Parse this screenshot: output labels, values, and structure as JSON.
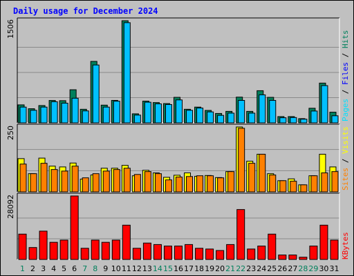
{
  "title": "Daily usage for December 2024",
  "colors": {
    "background": "#c0c0c0",
    "title": "#0000ff",
    "hits": "#00805c",
    "files": "#00c0ff",
    "pages": "#00e0ff",
    "visits": "#ffff00",
    "sites": "#ff8000",
    "kbytes": "#ff0000",
    "weekday_label": "#000000",
    "weekend_label": "#00805c"
  },
  "chart_data": [
    {
      "type": "bar",
      "name": "hits-files-pages",
      "max_label": "1506",
      "ylim": [
        0,
        1506
      ],
      "legend": [
        {
          "text": "Pages",
          "color": "#00e0ff"
        },
        {
          "text": " / ",
          "color": "#000000"
        },
        {
          "text": "Files",
          "color": "#0000ff"
        },
        {
          "text": " / ",
          "color": "#000000"
        },
        {
          "text": "Hits",
          "color": "#00805c"
        }
      ],
      "series": [
        {
          "name": "Hits",
          "color": "#00805c",
          "values": [
            265,
            208,
            255,
            330,
            327,
            488,
            200,
            906,
            261,
            331,
            1506,
            133,
            320,
            299,
            284,
            376,
            200,
            232,
            183,
            138,
            169,
            379,
            169,
            474,
            376,
            92,
            92,
            62,
            215,
            586,
            157
          ]
        },
        {
          "name": "Files",
          "color": "#00c0ff",
          "values": [
            232,
            185,
            232,
            311,
            290,
            363,
            176,
            853,
            232,
            319,
            1477,
            114,
            304,
            280,
            270,
            338,
            185,
            218,
            161,
            110,
            143,
            331,
            143,
            413,
            331,
            75,
            78,
            54,
            174,
            549,
            104
          ]
        }
      ]
    },
    {
      "type": "bar",
      "name": "visits-sites",
      "max_label": "250",
      "ylim": [
        0,
        250
      ],
      "legend": [
        {
          "text": "Sites",
          "color": "#ff8000"
        },
        {
          "text": " / ",
          "color": "#000000"
        },
        {
          "text": "Visits",
          "color": "#ffff00"
        }
      ],
      "series": [
        {
          "name": "Visits",
          "color": "#ffff00",
          "values": [
            128,
            70,
            130,
            99,
            96,
            111,
            49,
            65,
            91,
            91,
            102,
            62,
            83,
            73,
            56,
            64,
            73,
            60,
            63,
            55,
            78,
            250,
            118,
            145,
            70,
            43,
            50,
            27,
            62,
            145,
            96
          ]
        },
        {
          "name": "Sites",
          "color": "#ff8000",
          "values": [
            107,
            70,
            110,
            86,
            80,
            99,
            54,
            70,
            80,
            86,
            91,
            67,
            78,
            70,
            46,
            57,
            59,
            62,
            62,
            54,
            78,
            245,
            110,
            145,
            65,
            43,
            41,
            27,
            62,
            73,
            78
          ]
        }
      ]
    },
    {
      "type": "bar",
      "name": "kbytes",
      "max_label": "28092",
      "ylim": [
        0,
        28092
      ],
      "legend": [
        {
          "text": "KBytes",
          "color": "#ff0000"
        }
      ],
      "series": [
        {
          "name": "KBytes",
          "color": "#ff0000",
          "values": [
            11215,
            5278,
            12535,
            7588,
            8577,
            28092,
            4948,
            8577,
            7588,
            8577,
            15174,
            4948,
            7258,
            6598,
            5938,
            5938,
            6598,
            4948,
            4618,
            3959,
            6598,
            22093,
            4618,
            5938,
            11215,
            1979,
            1979,
            990,
            5938,
            15174,
            8577
          ]
        }
      ]
    }
  ],
  "days": [
    {
      "label": "1",
      "weekend": true
    },
    {
      "label": "2",
      "weekend": false
    },
    {
      "label": "3",
      "weekend": false
    },
    {
      "label": "4",
      "weekend": false
    },
    {
      "label": "5",
      "weekend": false
    },
    {
      "label": "6",
      "weekend": false
    },
    {
      "label": "7",
      "weekend": true
    },
    {
      "label": "8",
      "weekend": true
    },
    {
      "label": "9",
      "weekend": false
    },
    {
      "label": "10",
      "weekend": false
    },
    {
      "label": "11",
      "weekend": false
    },
    {
      "label": "12",
      "weekend": false
    },
    {
      "label": "13",
      "weekend": false
    },
    {
      "label": "14",
      "weekend": true
    },
    {
      "label": "15",
      "weekend": true
    },
    {
      "label": "16",
      "weekend": false
    },
    {
      "label": "17",
      "weekend": false
    },
    {
      "label": "18",
      "weekend": false
    },
    {
      "label": "19",
      "weekend": false
    },
    {
      "label": "20",
      "weekend": false
    },
    {
      "label": "21",
      "weekend": true
    },
    {
      "label": "22",
      "weekend": true
    },
    {
      "label": "23",
      "weekend": false
    },
    {
      "label": "24",
      "weekend": false
    },
    {
      "label": "25",
      "weekend": false
    },
    {
      "label": "26",
      "weekend": false
    },
    {
      "label": "27",
      "weekend": false
    },
    {
      "label": "28",
      "weekend": true
    },
    {
      "label": "29",
      "weekend": true
    },
    {
      "label": "30",
      "weekend": false
    },
    {
      "label": "31",
      "weekend": false
    }
  ]
}
